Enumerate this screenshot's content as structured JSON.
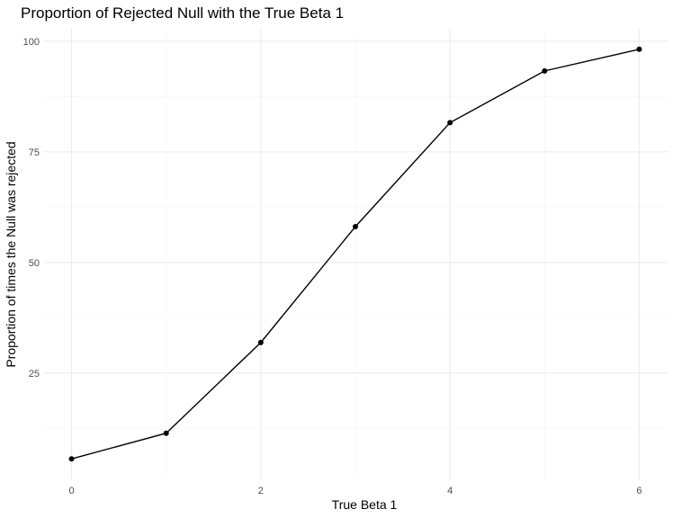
{
  "chart_data": {
    "type": "line",
    "title": "Proportion of Rejected Null with the True Beta 1",
    "xlabel": "True Beta 1",
    "ylabel": "Proportion of times the Null was rejected",
    "x": [
      0,
      1,
      2,
      3,
      4,
      5,
      6
    ],
    "series": [
      {
        "values": [
          5.6,
          11.4,
          31.9,
          58.1,
          81.6,
          93.3,
          98.2
        ]
      }
    ],
    "xticks": [
      0,
      2,
      4,
      6
    ],
    "xtick_labels": [
      "0",
      "2",
      "4",
      "6"
    ],
    "yticks": [
      25,
      50,
      75,
      100
    ],
    "ytick_labels": [
      "25",
      "50",
      "75",
      "100"
    ],
    "xlim": [
      -0.3,
      6.3
    ],
    "ylim": [
      0.97,
      102.83
    ],
    "grid": true,
    "legend": "none",
    "colors": {
      "line": "#000000",
      "point": "#000000",
      "grid_major": "#ebebeb",
      "grid_minor": "#f5f5f5"
    }
  }
}
